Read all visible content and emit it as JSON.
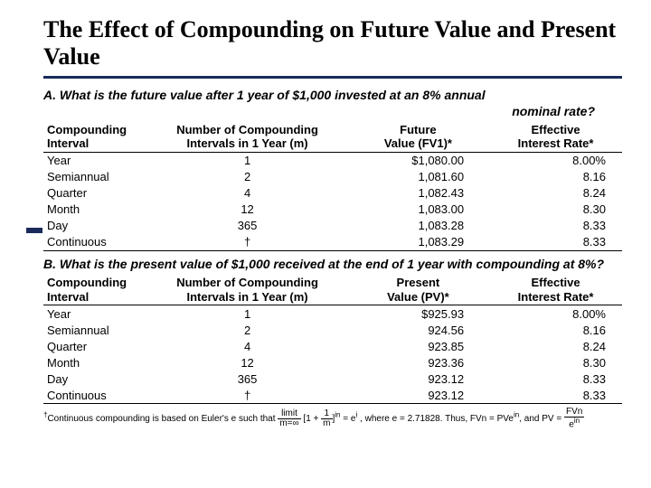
{
  "title": "The Effect of Compounding on Future Value and Present Value",
  "sectionA": {
    "question_line1": "A. What is the future value after 1 year of $1,000 invested at an 8% annual",
    "question_line2": "nominal rate?",
    "headers": {
      "h1a": "Compounding",
      "h1b": "Interval",
      "h2a": "Number of Compounding",
      "h2b": "Intervals in 1 Year (m)",
      "h3a": "Future",
      "h3b": "Value (FV1)*",
      "h4a": "Effective",
      "h4b": "Interest Rate*"
    },
    "rows": [
      {
        "interval": "Year",
        "m": "1",
        "val": "$1,080.00",
        "rate": "8.00%"
      },
      {
        "interval": "Semiannual",
        "m": "2",
        "val": "1,081.60",
        "rate": "8.16"
      },
      {
        "interval": "Quarter",
        "m": "4",
        "val": "1,082.43",
        "rate": "8.24"
      },
      {
        "interval": "Month",
        "m": "12",
        "val": "1,083.00",
        "rate": "8.30"
      },
      {
        "interval": "Day",
        "m": "365",
        "val": "1,083.28",
        "rate": "8.33"
      },
      {
        "interval": "Continuous",
        "m": "†",
        "val": "1,083.29",
        "rate": "8.33"
      }
    ]
  },
  "sectionB": {
    "question": "B. What is the present value of $1,000 received at the end of 1 year with compounding at 8%?",
    "headers": {
      "h1a": "Compounding",
      "h1b": "Interval",
      "h2a": "Number of Compounding",
      "h2b": "Intervals in 1 Year (m)",
      "h3a": "Present",
      "h3b": "Value (PV)*",
      "h4a": "Effective",
      "h4b": "Interest Rate*"
    },
    "rows": [
      {
        "interval": "Year",
        "m": "1",
        "val": "$925.93",
        "rate": "8.00%"
      },
      {
        "interval": "Semiannual",
        "m": "2",
        "val": "924.56",
        "rate": "8.16"
      },
      {
        "interval": "Quarter",
        "m": "4",
        "val": "923.85",
        "rate": "8.24"
      },
      {
        "interval": "Month",
        "m": "12",
        "val": "923.36",
        "rate": "8.30"
      },
      {
        "interval": "Day",
        "m": "365",
        "val": "923.12",
        "rate": "8.33"
      },
      {
        "interval": "Continuous",
        "m": "†",
        "val": "923.12",
        "rate": "8.33"
      }
    ]
  },
  "footnote": {
    "lead": "Continuous compounding is based on Euler's e such that",
    "lim": "limit",
    "msub": "m=∞",
    "inner_num": "1",
    "inner_plus": "1 + ",
    "inner_den": "m",
    "exp_in": "in",
    "eq": " = e",
    "where": " , where e = 2.71828. Thus, FVn = PVe",
    "and": ", and ",
    "pv": "PV = ",
    "fvn": "FVn",
    "ein": "e"
  },
  "style": {
    "title_fontsize": 26,
    "body_fontsize": 13,
    "footnote_fontsize": 10,
    "accent_color": "#1a2a5a",
    "text_color": "#000000",
    "bg": "#ffffff"
  }
}
